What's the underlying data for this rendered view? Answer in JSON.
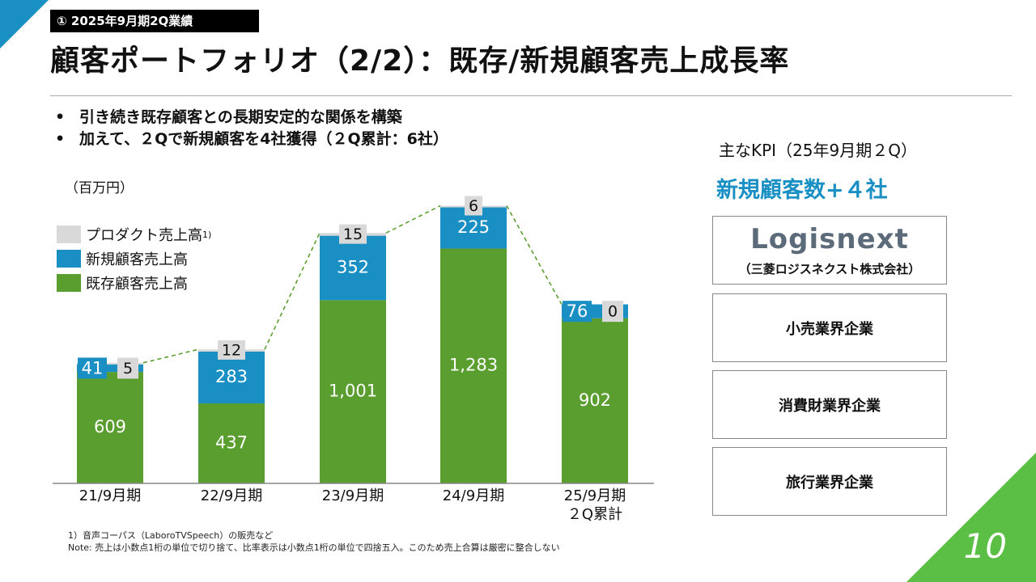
{
  "header": {
    "section_label": "① 2025年9月期2Q業績",
    "title": "顧客ポートフォリオ（2/2）：既存/新規顧客売上成長率"
  },
  "bullets": [
    "引き続き既存顧客との長期安定的な関係を構築",
    "加えて、２Qで新規顧客を4社獲得（２Q累計：6社）"
  ],
  "bullet_marker": "•",
  "chart_unit": "（百万円）",
  "legend": [
    {
      "label": "プロダクト売上高",
      "note": "1)",
      "color": "#d9d9d9"
    },
    {
      "label": "新規顧客売上高",
      "note": "",
      "color": "#1a8fc4"
    },
    {
      "label": "既存顧客売上高",
      "note": "",
      "color": "#5b9e30"
    }
  ],
  "chart_data": {
    "type": "bar",
    "stacked": true,
    "categories": [
      "21/9月期",
      "22/9月期",
      "23/9月期",
      "24/9月期",
      "25/9月期\n２Q累計"
    ],
    "series": [
      {
        "name": "既存顧客売上高",
        "values": [
          609,
          437,
          1001,
          1283,
          902
        ],
        "labels": [
          "609",
          "437",
          "1,001",
          "1,283",
          "902"
        ],
        "color": "#5b9e30"
      },
      {
        "name": "新規顧客売上高",
        "values": [
          41,
          283,
          352,
          225,
          76
        ],
        "labels": [
          "41",
          "283",
          "352",
          "225",
          "76"
        ],
        "color": "#1a8fc4"
      },
      {
        "name": "プロダクト売上高",
        "values": [
          5,
          12,
          15,
          6,
          0
        ],
        "labels": [
          "5",
          "12",
          "15",
          "6",
          "0"
        ],
        "color": "#d9d9d9"
      }
    ],
    "ylim": [
      0,
      1550
    ],
    "connector_lines": true,
    "title": "",
    "xlabel": "",
    "ylabel": ""
  },
  "footnotes": [
    "1）音声コーパス（LaboroTVSpeech）の販売など",
    "Note: 売上は小数点1桁の単位で切り捨て、比率表示は小数点1桁の単位で四捨五入。このため売上合算は厳密に整合しない"
  ],
  "kpi": {
    "heading": "主なKPI（25年9月期２Q）",
    "value": "新規顧客数+４社",
    "logo_text": "Logisnext",
    "logo_sub": "（三菱ロジスネクスト株式会社）",
    "boxes": [
      "小売業界企業",
      "消費財業界企業",
      "旅行業界企業"
    ]
  },
  "page_number": "10",
  "colors": {
    "accent_blue": "#1a8fc4",
    "accent_green": "#5bbf45"
  }
}
